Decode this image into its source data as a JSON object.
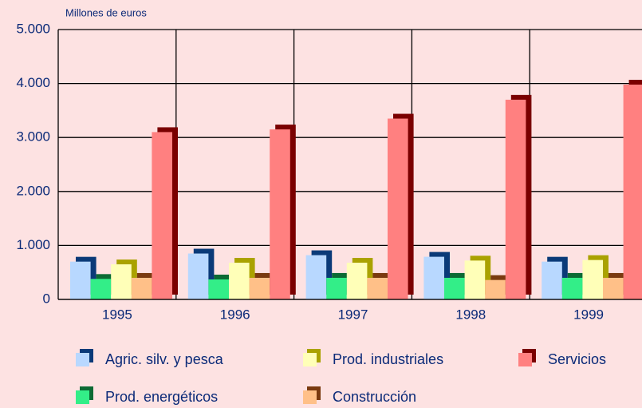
{
  "chart_data": {
    "type": "bar3d",
    "y_label": "Millones de euros",
    "categories": [
      "1995",
      "1996",
      "1997",
      "1998",
      "1999"
    ],
    "series": [
      {
        "name": "Agric. silv. y pesca",
        "color": "#b8d8ff",
        "side_color": "#0a3a78",
        "values": [
          700,
          850,
          820,
          790,
          700
        ]
      },
      {
        "name": "Prod. energéticos",
        "color": "#33ee88",
        "side_color": "#0c6a34",
        "values": [
          380,
          370,
          400,
          400,
          400
        ]
      },
      {
        "name": "Prod. industriales",
        "color": "#ffffb8",
        "side_color": "#aaa200",
        "values": [
          650,
          680,
          680,
          720,
          730
        ]
      },
      {
        "name": "Construcción",
        "color": "#ffc088",
        "side_color": "#7a3a10",
        "values": [
          400,
          400,
          400,
          360,
          400
        ]
      },
      {
        "name": "Servicios",
        "color": "#ff8080",
        "side_color": "#7a0000",
        "values": [
          3100,
          3150,
          3350,
          3700,
          3980
        ]
      }
    ],
    "ylim": [
      0,
      5000
    ],
    "yticks": [
      0,
      {
        "value": 1000,
        "label": "1.000"
      },
      {
        "value": 2000,
        "label": "2.000"
      },
      {
        "value": 3000,
        "label": "3.000"
      },
      {
        "value": 4000,
        "label": "4.000"
      },
      {
        "value": 5000,
        "label": "5.000"
      }
    ],
    "grid": true
  }
}
